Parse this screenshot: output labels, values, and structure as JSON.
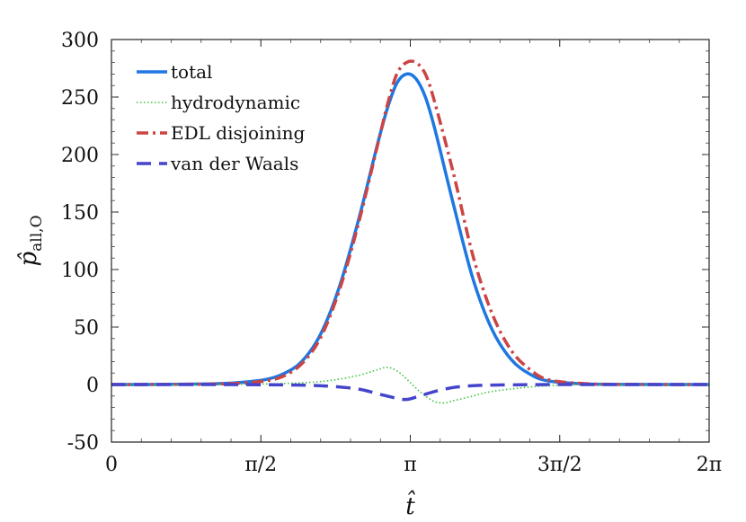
{
  "chart_data": {
    "type": "line",
    "xlabel": "t̂",
    "ylabel": "p̂",
    "ylabel_subscript": "all,O",
    "x_unit": "rad",
    "xlim": [
      0,
      6.2832
    ],
    "ylim": [
      -50,
      300
    ],
    "x_ticks": [
      {
        "value": 0,
        "label": "0"
      },
      {
        "value": 1.5708,
        "label": "π/2"
      },
      {
        "value": 3.1416,
        "label": "π"
      },
      {
        "value": 4.7124,
        "label": "3π/2"
      },
      {
        "value": 6.2832,
        "label": "2π"
      }
    ],
    "y_ticks": [
      -50,
      0,
      50,
      100,
      150,
      200,
      250,
      300
    ],
    "grid": false,
    "legend_position": "top-left",
    "series": [
      {
        "name": "total",
        "color": "#1f77e0",
        "style": "solid",
        "x": [
          0,
          0.5,
          1.0,
          1.3,
          1.6,
          1.8,
          2.0,
          2.2,
          2.4,
          2.6,
          2.8,
          2.9,
          3.0,
          3.1,
          3.2,
          3.3,
          3.4,
          3.6,
          3.8,
          4.0,
          4.2,
          4.4,
          4.6,
          5.0,
          5.5,
          6.2832
        ],
        "y": [
          0,
          0.1,
          0.5,
          1.5,
          4,
          9,
          20,
          44,
          86,
          144,
          210,
          240,
          262,
          270,
          266,
          250,
          222,
          155,
          92,
          48,
          22,
          9,
          3,
          0.5,
          0.1,
          0
        ]
      },
      {
        "name": "hydrodynamic",
        "color": "#3cc43c",
        "style": "dotted",
        "x": [
          0,
          1.0,
          1.6,
          2.0,
          2.3,
          2.6,
          2.8,
          2.9,
          3.0,
          3.1,
          3.2,
          3.3,
          3.4,
          3.5,
          3.6,
          3.8,
          4.0,
          4.3,
          4.6,
          5.0,
          6.2832
        ],
        "y": [
          0,
          0,
          0.5,
          1.5,
          3.5,
          8,
          13,
          15,
          12,
          5,
          -3,
          -10,
          -15,
          -16,
          -14,
          -10,
          -6,
          -3,
          -1,
          0,
          0
        ]
      },
      {
        "name": "EDL disjoining",
        "color": "#cc4444",
        "style": "dashdot",
        "x": [
          0,
          0.5,
          1.0,
          1.3,
          1.6,
          1.8,
          2.0,
          2.2,
          2.4,
          2.6,
          2.8,
          2.9,
          3.0,
          3.1,
          3.2,
          3.3,
          3.4,
          3.6,
          3.8,
          4.0,
          4.2,
          4.4,
          4.6,
          5.0,
          5.5,
          6.2832
        ],
        "y": [
          0,
          0.1,
          0.4,
          1,
          3,
          7,
          18,
          41,
          83,
          141,
          209,
          243,
          270,
          280,
          280,
          270,
          245,
          182,
          112,
          62,
          30,
          13,
          4,
          0.7,
          0.1,
          0
        ]
      },
      {
        "name": "van der Waals",
        "color": "#4444cc",
        "style": "dashed",
        "x": [
          0,
          1.0,
          1.6,
          2.0,
          2.3,
          2.6,
          2.8,
          3.0,
          3.1,
          3.2,
          3.4,
          3.6,
          3.8,
          4.0,
          4.3,
          4.6,
          5.0,
          6.2832
        ],
        "y": [
          0,
          0,
          -0.2,
          -0.5,
          -1.5,
          -4,
          -8,
          -12,
          -13,
          -11,
          -6,
          -2.5,
          -1,
          -0.5,
          -0.2,
          0,
          0,
          0
        ]
      }
    ]
  }
}
